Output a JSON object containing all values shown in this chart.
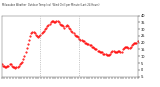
{
  "title": "Milwaukee Weather  Outdoor Temp (vs)  Wind Chill per Minute (Last 24 Hours)",
  "bg_color": "#ffffff",
  "line_color": "#ff0000",
  "y_min": -5,
  "y_max": 40,
  "y_ticks": [
    40,
    35,
    30,
    25,
    20,
    15,
    10,
    5,
    0,
    -5
  ],
  "y_tick_labels": [
    "40",
    "35",
    "30",
    "25",
    "20",
    "15",
    "10",
    "5",
    "0",
    "-5"
  ],
  "vline_x": [
    0.285,
    0.57
  ],
  "curve": [
    4,
    3,
    3,
    2,
    2,
    3,
    3,
    4,
    4,
    3,
    2,
    2,
    1,
    2,
    2,
    3,
    4,
    5,
    6,
    8,
    10,
    13,
    16,
    19,
    22,
    25,
    27,
    28,
    28,
    27,
    26,
    25,
    24,
    25,
    26,
    27,
    28,
    29,
    30,
    31,
    32,
    33,
    34,
    35,
    36,
    36,
    35,
    35,
    36,
    36,
    35,
    34,
    33,
    33,
    32,
    31,
    32,
    33,
    32,
    31,
    30,
    29,
    28,
    27,
    26,
    25,
    25,
    24,
    23,
    22,
    22,
    21,
    21,
    20,
    20,
    19,
    19,
    18,
    18,
    17,
    17,
    16,
    15,
    15,
    14,
    14,
    13,
    13,
    13,
    12,
    12,
    12,
    11,
    11,
    11,
    12,
    13,
    14,
    14,
    13,
    13,
    13,
    14,
    14,
    13,
    13,
    15,
    16,
    17,
    17,
    17,
    16,
    16,
    17,
    18,
    19,
    20,
    20,
    20,
    21
  ]
}
